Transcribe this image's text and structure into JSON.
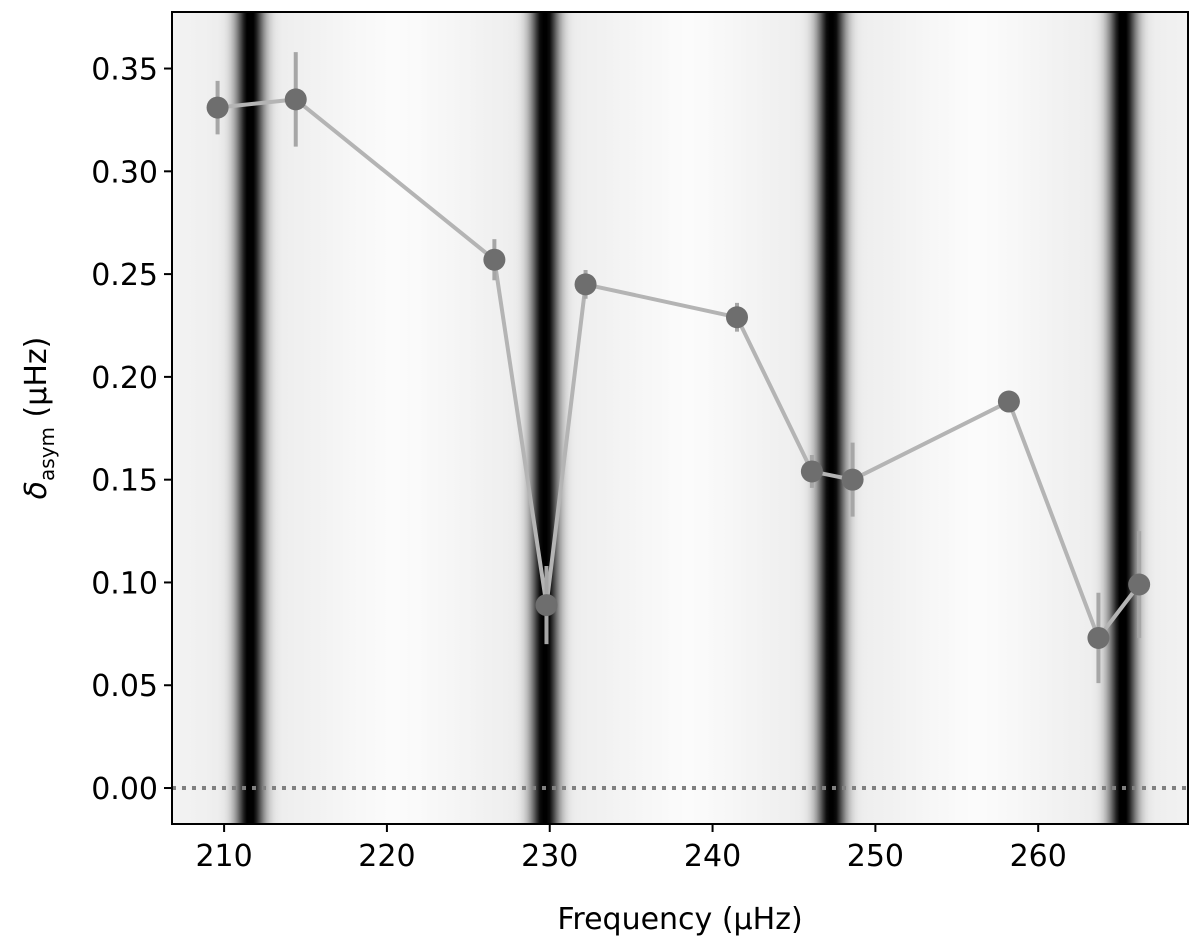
{
  "chart_data": {
    "type": "scatter",
    "xlabel": "Frequency (μHz)",
    "ylabel": {
      "symbol": "δ",
      "subscript": "asym",
      "unit": " (μHz)"
    },
    "xlim": [
      206.8,
      269.2
    ],
    "ylim": [
      -0.0175,
      0.3775
    ],
    "x_ticks": [
      210,
      220,
      230,
      240,
      250,
      260
    ],
    "x_tick_labels": [
      "210",
      "220",
      "230",
      "240",
      "250",
      "260"
    ],
    "y_ticks": [
      0.0,
      0.05,
      0.1,
      0.15,
      0.2,
      0.25,
      0.3,
      0.35
    ],
    "y_tick_labels": [
      "0.00",
      "0.05",
      "0.10",
      "0.15",
      "0.20",
      "0.25",
      "0.30",
      "0.35"
    ],
    "grid": false,
    "legend": "none",
    "reference_line": {
      "y": 0.0,
      "style": "dotted",
      "color": "#808080"
    },
    "background_bands": {
      "description_colormap": "greyscale",
      "centers": [
        211.6,
        229.7,
        247.3,
        265.2
      ],
      "colors": {
        "dark": "#000000",
        "light": "#ffffff"
      }
    },
    "series": [
      {
        "marker_color": "#6e6e6e",
        "line_color": "#b4b4b4",
        "errorbar_color": "#a6a6a6",
        "x": [
          209.6,
          214.4,
          226.6,
          229.8,
          232.2,
          241.5,
          246.1,
          248.6,
          258.2,
          263.7,
          266.2
        ],
        "y": [
          0.331,
          0.335,
          0.257,
          0.089,
          0.245,
          0.229,
          0.154,
          0.15,
          0.188,
          0.073,
          0.099
        ],
        "yerr": [
          0.013,
          0.023,
          0.01,
          0.019,
          0.007,
          0.007,
          0.008,
          0.018,
          0.004,
          0.022,
          0.026
        ]
      }
    ]
  }
}
